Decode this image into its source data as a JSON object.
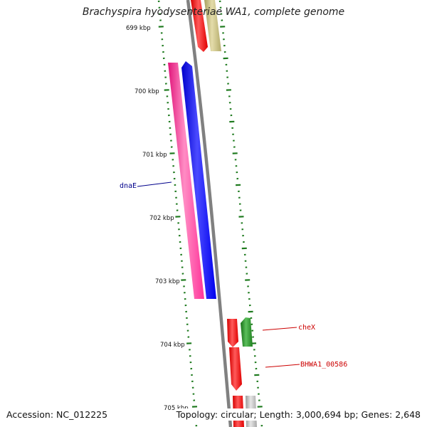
{
  "title": "Brachyspira hyodysenteriae WA1, complete genome",
  "footer": {
    "accession": "Accession: NC_012225",
    "topology": "Topology: circular; Length: 3,000,694 bp; Genes: 2,648"
  },
  "scale_labels": [
    "699 kbp",
    "700 kbp",
    "701 kbp",
    "702 kbp",
    "703 kbp",
    "704 kbp",
    "705 kbp"
  ],
  "gene_labels": {
    "dnaE": "dnaE",
    "cheX": "cheX",
    "bhwa": "BHWA1_00586"
  },
  "colors": {
    "backbone": "#808080",
    "label_blue": "#00008b",
    "label_red": "#cc0000",
    "tick_green": "#1e7a1e",
    "forward_red": "#ff0000",
    "khaki": "#c8c080",
    "magenta": "#ff3399",
    "blue": "#0000ff",
    "green": "#228b22",
    "grey": "#bbbbbb"
  }
}
